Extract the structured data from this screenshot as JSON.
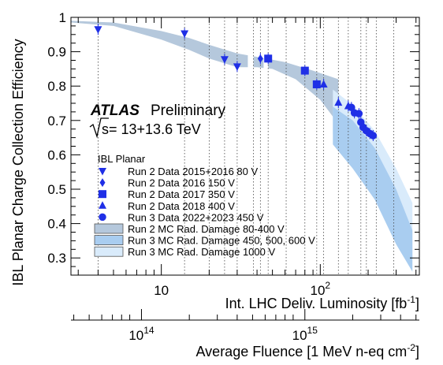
{
  "chart_data": {
    "type": "scatter",
    "title": "",
    "ylabel": "IBL Planar Charge Collection Efficiency",
    "xlabel": "Int. LHC Deliv. Luminosity [fb",
    "xlabel_sup": "-1",
    "xlabel_close": "]",
    "x_scale": "log",
    "xlim": [
      2.7,
      420
    ],
    "ylim": [
      0.25,
      1.0
    ],
    "x_tick_labels": [
      {
        "value": 10,
        "base": "10",
        "exp": ""
      },
      {
        "value": 100,
        "base": "10",
        "exp": "2"
      }
    ],
    "y_tick_labels": [
      {
        "value": 0.3,
        "label": "0.3"
      },
      {
        "value": 0.4,
        "label": "0.4"
      },
      {
        "value": 0.5,
        "label": "0.5"
      },
      {
        "value": 0.6,
        "label": "0.6"
      },
      {
        "value": 0.7,
        "label": "0.7"
      },
      {
        "value": 0.8,
        "label": "0.8"
      },
      {
        "value": 0.9,
        "label": "0.9"
      },
      {
        "value": 1.0,
        "label": "1"
      }
    ],
    "fluence_axis": {
      "label": "Average Fluence [1 MeV n-eq cm",
      "label_sup": "-2",
      "label_close": "]",
      "ticks": [
        {
          "lumi": 7.5,
          "base": "10",
          "exp": "14"
        },
        {
          "lumi": 80,
          "base": "10",
          "exp": "15"
        }
      ]
    },
    "annotation": {
      "atlas": "ATLAS",
      "prelim": "Preliminary",
      "energy": "s= 13+13.6 TeV",
      "legend_header": "IBL Planar"
    },
    "grid": "vertical dotted lines at data-taking lumi",
    "vertical_lines": [
      4,
      14,
      20,
      25,
      30,
      38,
      42,
      47,
      61,
      80,
      95,
      105,
      130,
      150,
      180,
      195,
      225,
      290
    ],
    "series": [
      {
        "name": "Run 2 Data 2015+2016  80 V",
        "marker": "triangle-down",
        "x": [
          4,
          14,
          25,
          30
        ],
        "y": [
          0.965,
          0.953,
          0.878,
          0.857
        ]
      },
      {
        "name": "Run 2 Data 2016 150 V",
        "marker": "diamond",
        "x": [
          42
        ],
        "y": [
          0.88
        ]
      },
      {
        "name": "Run 2 Data 2017 350 V",
        "marker": "square",
        "x": [
          47,
          80,
          95
        ],
        "y": [
          0.88,
          0.845,
          0.805
        ]
      },
      {
        "name": "Run 2 Data 2018 400 V",
        "marker": "triangle-up",
        "x": [
          105,
          130,
          150
        ],
        "y": [
          0.805,
          0.752,
          0.742
        ]
      },
      {
        "name": "Run 3 Data 2022+2023 450 V",
        "marker": "circle",
        "x": [
          157,
          164,
          175,
          180,
          186,
          195,
          205,
          215
        ],
        "y": [
          0.738,
          0.722,
          0.72,
          0.695,
          0.68,
          0.67,
          0.662,
          0.656
        ]
      }
    ],
    "bands": [
      {
        "name": "Run 2 MC Rad. Damage 80-400 V",
        "color": "#b5c8dc"
      },
      {
        "name": "Run 3 MC Rad. Damage 450, 500, 600 V",
        "color": "#a9cdf0"
      },
      {
        "name": "Run 3 MC Rad. Damage 1000 V",
        "color": "#d9ebfb"
      }
    ],
    "marker_color": "#1f2fe6"
  }
}
